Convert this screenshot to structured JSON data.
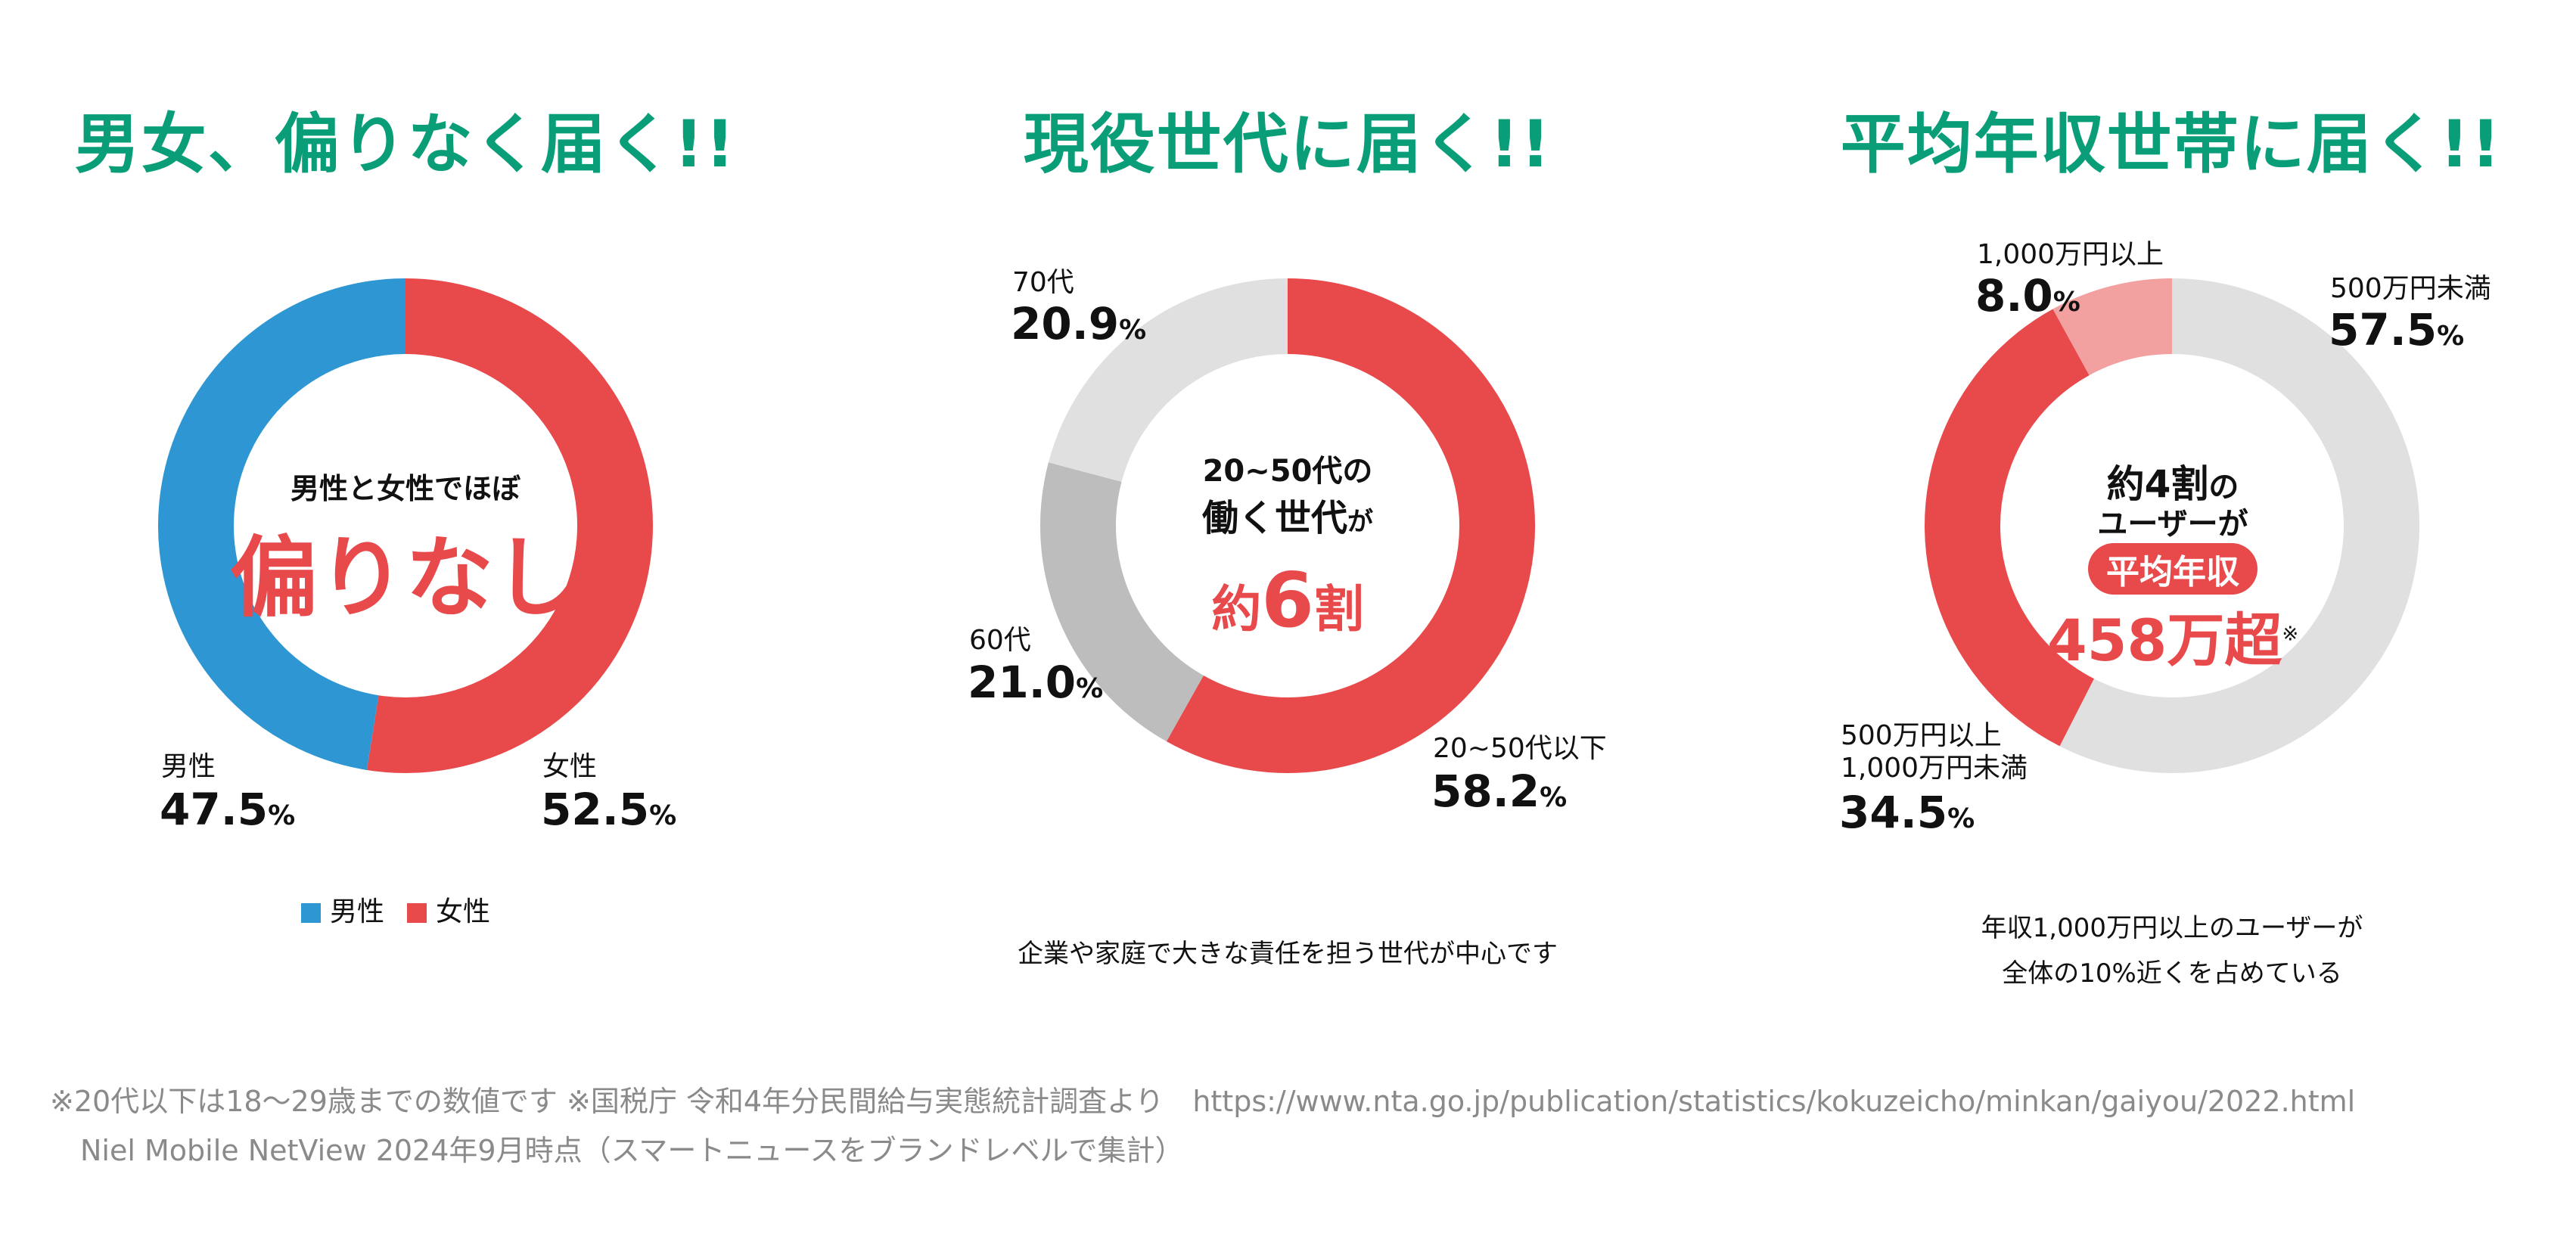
{
  "colors": {
    "title": "#0a9e78",
    "red": "#e84a4c",
    "blue": "#2e96d3",
    "light_gray": "#e0e0e0",
    "mid_gray": "#bdbdbd",
    "pink": "#f2a0a0"
  },
  "chart_data": [
    {
      "type": "pie",
      "variant": "donut",
      "title": "男女、偏りなく届く!!",
      "center_text": {
        "line1": "男性と女性でほぼ",
        "line2": "偏りなし"
      },
      "slices": [
        {
          "label": "女性",
          "value": 52.5,
          "value_text": "52.5",
          "color": "#e84a4c"
        },
        {
          "label": "男性",
          "value": 47.5,
          "value_text": "47.5",
          "color": "#2e96d3"
        }
      ],
      "legend": [
        {
          "label": "男性",
          "color": "#2e96d3"
        },
        {
          "label": "女性",
          "color": "#e84a4c"
        }
      ],
      "legend_position": "bottom",
      "unit": "%"
    },
    {
      "type": "pie",
      "variant": "donut",
      "title": "現役世代に届く!!",
      "center_text": {
        "line1": "20~50代の",
        "line2a": "働く世代",
        "line2b": "が",
        "line3a": "約",
        "line3b": "6",
        "line3c": "割"
      },
      "slices": [
        {
          "label": "20~50代以下",
          "value": 58.2,
          "value_text": "58.2",
          "color": "#e84a4c"
        },
        {
          "label": "60代",
          "value": 21.0,
          "value_text": "21.0",
          "color": "#bdbdbd"
        },
        {
          "label": "70代",
          "value": 20.9,
          "value_text": "20.9",
          "color": "#e0e0e0"
        }
      ],
      "caption": "企業や家庭で大きな責任を担う世代が中心です",
      "unit": "%"
    },
    {
      "type": "pie",
      "variant": "donut",
      "title": "平均年収世帯に届く!!",
      "center_text": {
        "line1a": "約4割",
        "line1b": "の",
        "line2": "ユーザーが",
        "pill": "平均年収",
        "line4": "458万超",
        "note_mark": "※"
      },
      "slices": [
        {
          "label": "500万円未満",
          "value": 57.5,
          "value_text": "57.5",
          "color": "#e0e0e0"
        },
        {
          "label": "500万円以上\n1,000万円未満",
          "label_line1": "500万円以上",
          "label_line2": "1,000万円未満",
          "value": 34.5,
          "value_text": "34.5",
          "color": "#e84a4c"
        },
        {
          "label": "1,000万円以上",
          "value": 8.0,
          "value_text": "8.0",
          "color": "#f2a0a0"
        }
      ],
      "caption_line1": "年収1,000万円以上のユーザーが",
      "caption_line2": "全体の10%近くを占めている",
      "unit": "%"
    }
  ],
  "footnotes": {
    "line1": "※20代以下は18～29歳までの数値です ※国税庁 令和4年分民間給与実態統計調査より　https://www.nta.go.jp/publication/statistics/kokuzeicho/minkan/gaiyou/2022.html",
    "line2": "Niel Mobile NetView 2024年9月時点（スマートニュースをブランドレベルで集計）"
  }
}
